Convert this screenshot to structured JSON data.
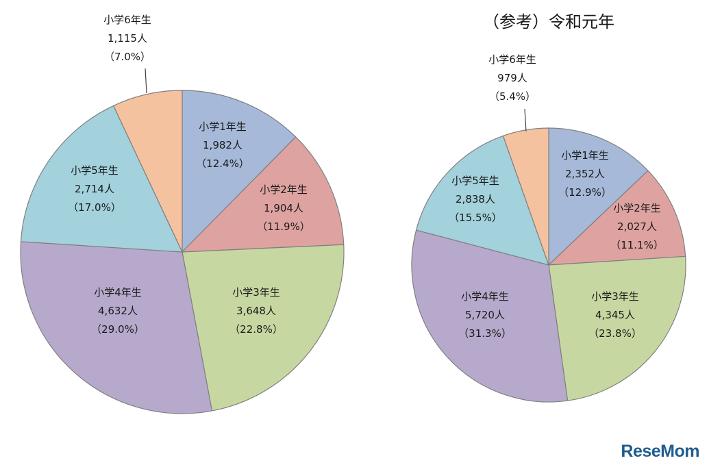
{
  "watermark": "ReseMom",
  "chart_data": [
    {
      "type": "pie",
      "title": "",
      "slices": [
        {
          "label": "小学1年生",
          "count": "1,982人",
          "pct": "（12.4%）",
          "value": 12.4,
          "color": "#a6b9d9"
        },
        {
          "label": "小学2年生",
          "count": "1,904人",
          "pct": "（11.9%）",
          "value": 11.9,
          "color": "#dea3a1"
        },
        {
          "label": "小学3年生",
          "count": "3,648人",
          "pct": "（22.8%）",
          "value": 22.8,
          "color": "#c7d7a1"
        },
        {
          "label": "小学4年生",
          "count": "4,632人",
          "pct": "（29.0%）",
          "value": 29.0,
          "color": "#b7a9cc"
        },
        {
          "label": "小学5年生",
          "count": "2,714人",
          "pct": "（17.0%）",
          "value": 17.0,
          "color": "#a3d1dc"
        },
        {
          "label": "小学6年生",
          "count": "1,115人",
          "pct": "（7.0%）",
          "value": 7.0,
          "color": "#f5c2a0"
        }
      ]
    },
    {
      "type": "pie",
      "title": "（参考）令和元年",
      "slices": [
        {
          "label": "小学1年生",
          "count": "2,352人",
          "pct": "（12.9%）",
          "value": 12.9,
          "color": "#a6b9d9"
        },
        {
          "label": "小学2年生",
          "count": "2,027人",
          "pct": "（11.1%）",
          "value": 11.1,
          "color": "#dea3a1"
        },
        {
          "label": "小学3年生",
          "count": "4,345人",
          "pct": "（23.8%）",
          "value": 23.8,
          "color": "#c7d7a1"
        },
        {
          "label": "小学4年生",
          "count": "5,720人",
          "pct": "（31.3%）",
          "value": 31.3,
          "color": "#b7a9cc"
        },
        {
          "label": "小学5年生",
          "count": "2,838人",
          "pct": "（15.5%）",
          "value": 15.5,
          "color": "#a3d1dc"
        },
        {
          "label": "小学6年生",
          "count": "979人",
          "pct": "（5.4%）",
          "value": 5.4,
          "color": "#f5c2a0"
        }
      ]
    }
  ]
}
